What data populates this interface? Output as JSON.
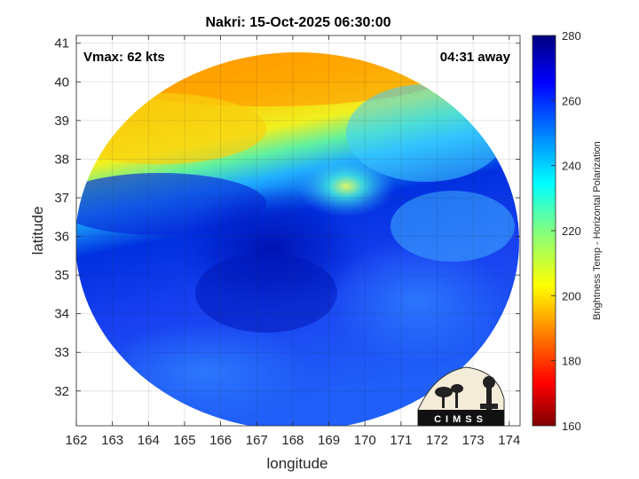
{
  "chart_data": {
    "type": "heatmap",
    "title": "Nakri: 15-Oct-2025 06:30:00",
    "xlabel": "longitude",
    "ylabel": "latitude",
    "xlim": [
      162,
      174.3
    ],
    "ylim": [
      31.1,
      41.2
    ],
    "xticks": [
      "162",
      "163",
      "164",
      "165",
      "166",
      "167",
      "168",
      "169",
      "170",
      "171",
      "172",
      "173",
      "174"
    ],
    "yticks": [
      "32",
      "33",
      "34",
      "35",
      "36",
      "37",
      "38",
      "39",
      "40",
      "41"
    ],
    "grid": true,
    "annotations": {
      "vmax": "Vmax: 62 kts",
      "away": "04:31 away"
    },
    "colorbar": {
      "label": "Brightness Temp - Horizontal Polarization",
      "range": [
        160,
        280
      ],
      "ticks": [
        "160",
        "180",
        "200",
        "220",
        "240",
        "260",
        "280"
      ],
      "colormap": "jet"
    },
    "field": {
      "description_values": [
        {
          "lon": 164.5,
          "lat": 40.3,
          "tb": 195
        },
        {
          "lon": 167.5,
          "lat": 39.2,
          "tb": 210
        },
        {
          "lon": 163,
          "lat": 38,
          "tb": 220
        },
        {
          "lon": 169.5,
          "lat": 37,
          "tb": 215
        },
        {
          "lon": 167.3,
          "lat": 36,
          "tb": 272
        },
        {
          "lon": 167.5,
          "lat": 34.8,
          "tb": 268
        },
        {
          "lon": 171,
          "lat": 34,
          "tb": 258
        },
        {
          "lon": 172,
          "lat": 36.8,
          "tb": 250
        },
        {
          "lon": 164,
          "lat": 32.5,
          "tb": 258
        }
      ]
    }
  },
  "logo": {
    "text": "CIMSS"
  }
}
